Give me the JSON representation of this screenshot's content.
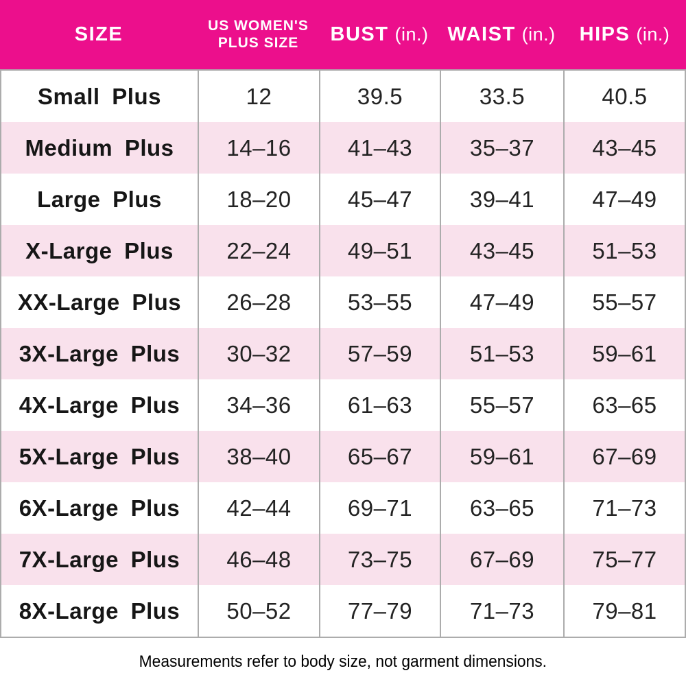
{
  "colors": {
    "header_bg": "#EC0F8C",
    "alt_row_bg": "#F9E1EC",
    "grid_line": "#ACACAC",
    "header_text": "#FFFFFF",
    "body_text": "#232323"
  },
  "table": {
    "columns": [
      {
        "key": "size",
        "label": "SIZE"
      },
      {
        "key": "plus_size",
        "label": "US WOMEN'S PLUS SIZE",
        "lines": [
          "US WOMEN'S",
          "PLUS SIZE"
        ]
      },
      {
        "key": "bust",
        "label": "BUST",
        "unit": "(in.)"
      },
      {
        "key": "waist",
        "label": "WAIST",
        "unit": "(in.)"
      },
      {
        "key": "hips",
        "label": "HIPS",
        "unit": "(in.)"
      }
    ],
    "rows": [
      {
        "size": "Small Plus",
        "plus_size": "12",
        "bust": "39.5",
        "waist": "33.5",
        "hips": "40.5"
      },
      {
        "size": "Medium Plus",
        "plus_size": "14–16",
        "bust": "41–43",
        "waist": "35–37",
        "hips": "43–45"
      },
      {
        "size": "Large Plus",
        "plus_size": "18–20",
        "bust": "45–47",
        "waist": "39–41",
        "hips": "47–49"
      },
      {
        "size": "X-Large Plus",
        "plus_size": "22–24",
        "bust": "49–51",
        "waist": "43–45",
        "hips": "51–53"
      },
      {
        "size": "XX-Large Plus",
        "plus_size": "26–28",
        "bust": "53–55",
        "waist": "47–49",
        "hips": "55–57"
      },
      {
        "size": "3X-Large Plus",
        "plus_size": "30–32",
        "bust": "57–59",
        "waist": "51–53",
        "hips": "59–61"
      },
      {
        "size": "4X-Large Plus",
        "plus_size": "34–36",
        "bust": "61–63",
        "waist": "55–57",
        "hips": "63–65"
      },
      {
        "size": "5X-Large Plus",
        "plus_size": "38–40",
        "bust": "65–67",
        "waist": "59–61",
        "hips": "67–69"
      },
      {
        "size": "6X-Large Plus",
        "plus_size": "42–44",
        "bust": "69–71",
        "waist": "63–65",
        "hips": "71–73"
      },
      {
        "size": "7X-Large Plus",
        "plus_size": "46–48",
        "bust": "73–75",
        "waist": "67–69",
        "hips": "75–77"
      },
      {
        "size": "8X-Large Plus",
        "plus_size": "50–52",
        "bust": "77–79",
        "waist": "71–73",
        "hips": "79–81"
      }
    ],
    "footnote": "Measurements refer to body size, not garment dimensions."
  }
}
